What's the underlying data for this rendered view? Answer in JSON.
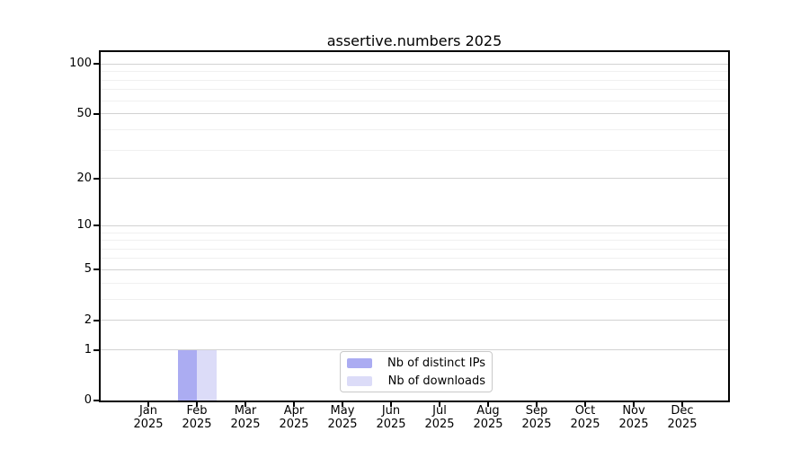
{
  "title": "assertive.numbers 2025",
  "colors": {
    "bar_distinct_ips": "#abacf2",
    "bar_downloads": "#dcdcf8",
    "grid_major": "#d2d2d2",
    "grid_minor": "#f0f0f0",
    "spine": "#000000",
    "legend_border": "#c9c9c9",
    "background": "#ffffff"
  },
  "chart_data": {
    "type": "bar",
    "title": "assertive.numbers 2025",
    "categories": [
      "Jan",
      "Feb",
      "Mar",
      "Apr",
      "May",
      "Jun",
      "Jul",
      "Aug",
      "Sep",
      "Oct",
      "Nov",
      "Dec"
    ],
    "year": "2025",
    "series": [
      {
        "name": "Nb of distinct IPs",
        "color": "#abacf2",
        "values": [
          0,
          1,
          0,
          0,
          0,
          0,
          0,
          0,
          0,
          0,
          0,
          0
        ]
      },
      {
        "name": "Nb of downloads",
        "color": "#dcdcf8",
        "values": [
          0,
          1,
          0,
          0,
          0,
          0,
          0,
          0,
          0,
          0,
          0,
          0
        ]
      }
    ],
    "xlabel": "",
    "ylabel": "",
    "y_scale": "log10(1+y)",
    "ylim": [
      0,
      119
    ],
    "y_major_ticks": [
      0,
      1,
      2,
      5,
      10,
      20,
      50,
      100
    ],
    "y_minor_gridlines": [
      3,
      4,
      6,
      7,
      8,
      9,
      30,
      40,
      60,
      70,
      80,
      90
    ],
    "grid": "horizontal",
    "legend_position": "lower center"
  }
}
